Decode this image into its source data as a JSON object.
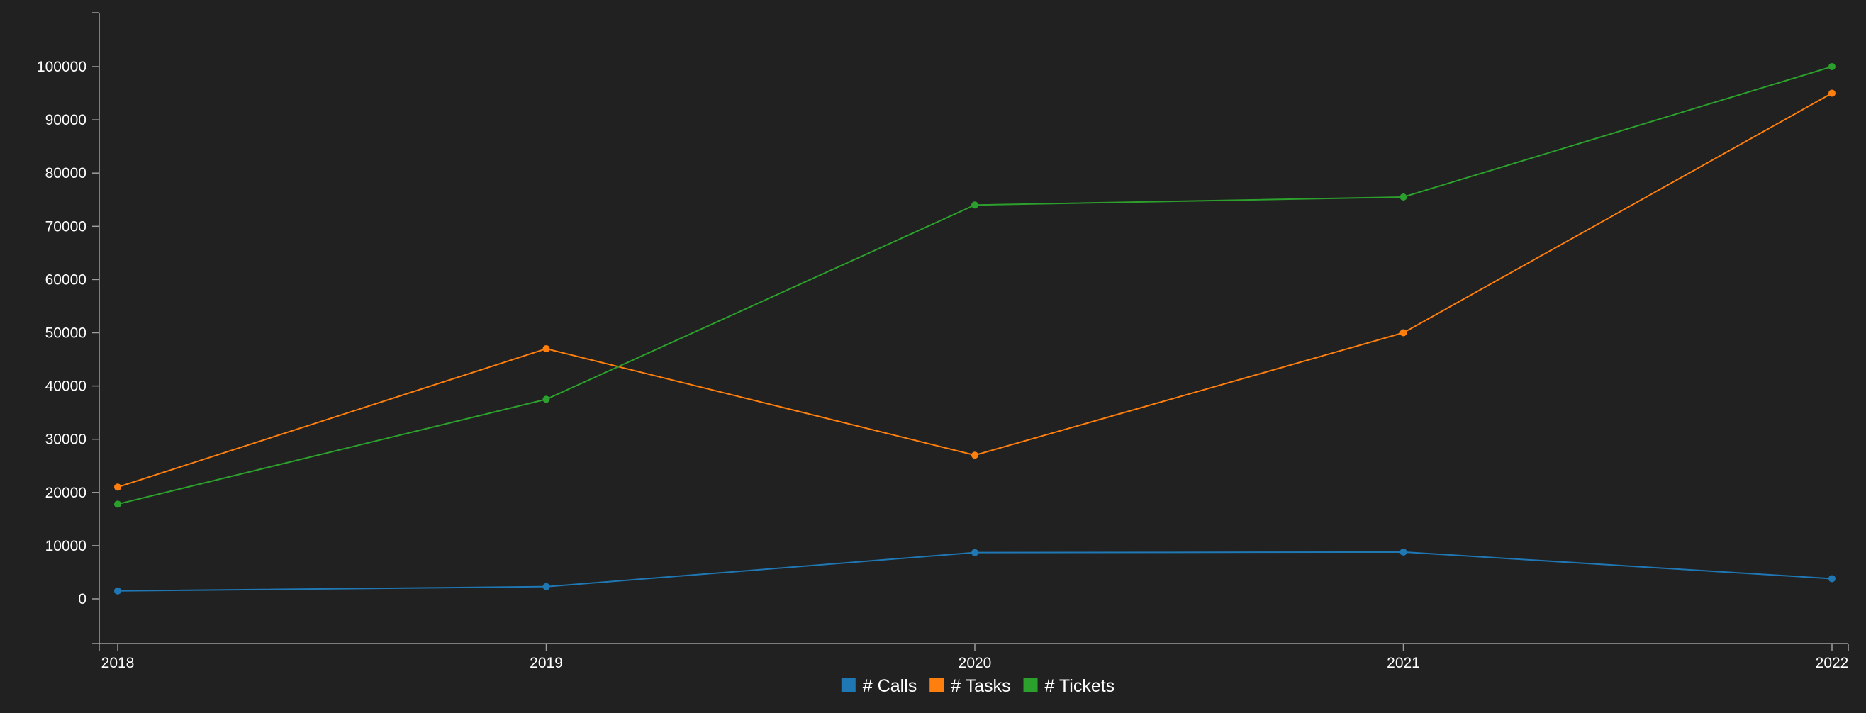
{
  "chart_data": {
    "type": "line",
    "x": [
      "2018",
      "2019",
      "2020",
      "2021",
      "2022"
    ],
    "ylim": [
      -8000,
      110000
    ],
    "yticks": [
      0,
      10000,
      20000,
      30000,
      40000,
      50000,
      60000,
      70000,
      80000,
      90000,
      100000
    ],
    "grid": false,
    "legend_position": "bottom-center",
    "series": [
      {
        "name": "# Calls",
        "color": "#1f77b4",
        "values": [
          1500,
          2300,
          8700,
          8800,
          3800
        ]
      },
      {
        "name": "# Tasks",
        "color": "#ff7f0e",
        "values": [
          21000,
          47000,
          27000,
          50000,
          95000
        ]
      },
      {
        "name": "# Tickets",
        "color": "#2ca02c",
        "values": [
          17800,
          37500,
          74000,
          75500,
          100000
        ]
      }
    ]
  }
}
